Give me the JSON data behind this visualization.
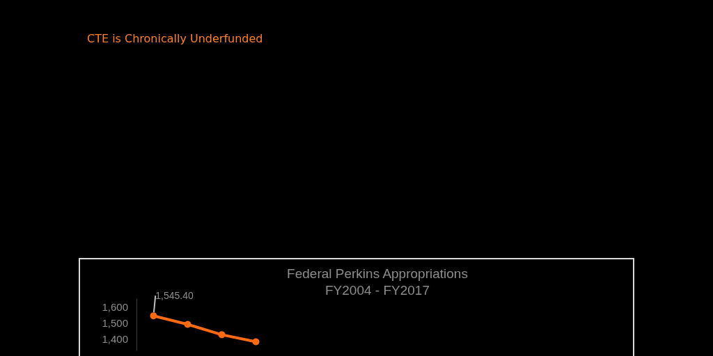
{
  "chart_data": {
    "type": "line",
    "title": "CTE is Chronically Underfunded",
    "subtitle": "Federal Perkins Appropriations\nFY2004 - FY2017",
    "categories": [
      null,
      null,
      null,
      null
    ],
    "series": [
      {
        "color": "#ff6a13",
        "values": [
          1545.4,
          1492,
          1428,
          1384
        ],
        "value_labels": [
          "1,545.40",
          null,
          null,
          null
        ]
      }
    ],
    "ylim": [
      1330,
      1650
    ],
    "yticks": [
      {
        "value": 1400,
        "label": "1,400"
      },
      {
        "value": 1500,
        "label": "1,500"
      },
      {
        "value": 1600,
        "label": "1,600"
      }
    ],
    "grid": false,
    "marker": "circle",
    "line_style": "solid"
  }
}
